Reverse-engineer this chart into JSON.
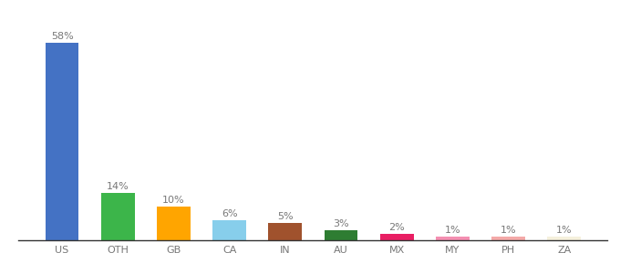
{
  "categories": [
    "US",
    "OTH",
    "GB",
    "CA",
    "IN",
    "AU",
    "MX",
    "MY",
    "PH",
    "ZA"
  ],
  "values": [
    58,
    14,
    10,
    6,
    5,
    3,
    2,
    1,
    1,
    1
  ],
  "bar_colors": [
    "#4472C4",
    "#3CB54A",
    "#FFA500",
    "#87CEEB",
    "#A0522D",
    "#2E7D32",
    "#E91E63",
    "#F48FB1",
    "#F4A9A8",
    "#F5F0DC"
  ],
  "labels": [
    "58%",
    "14%",
    "10%",
    "6%",
    "5%",
    "3%",
    "2%",
    "1%",
    "1%",
    "1%"
  ],
  "ylim": [
    0,
    65
  ],
  "background_color": "#ffffff",
  "label_fontsize": 8.0,
  "tick_fontsize": 8.0,
  "label_color": "#777777"
}
